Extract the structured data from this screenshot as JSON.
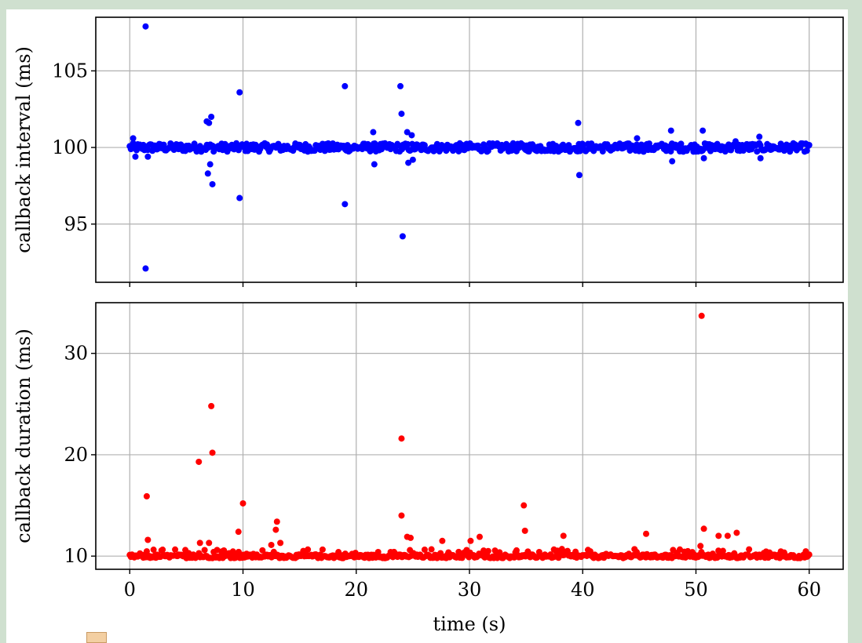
{
  "chart_data": [
    {
      "type": "scatter",
      "ylabel": "callback interval (ms)",
      "xlim": [
        -3,
        63
      ],
      "ylim": [
        91.2,
        108.5
      ],
      "yticks": [
        95,
        100,
        105
      ],
      "xticks": [
        0,
        10,
        20,
        30,
        40,
        50,
        60
      ],
      "show_xtick_labels": false,
      "grid": true,
      "color": "#0000ff",
      "series": [
        {
          "baseline": 100.0,
          "n_regular": 600,
          "x_range": [
            0,
            60
          ],
          "outliers": [
            {
              "x": 0.3,
              "y": 100.6
            },
            {
              "x": 0.5,
              "y": 99.4
            },
            {
              "x": 1.4,
              "y": 107.9
            },
            {
              "x": 1.4,
              "y": 92.1
            },
            {
              "x": 1.6,
              "y": 99.4
            },
            {
              "x": 6.8,
              "y": 101.7
            },
            {
              "x": 6.9,
              "y": 98.3
            },
            {
              "x": 7.0,
              "y": 101.6
            },
            {
              "x": 7.1,
              "y": 98.9
            },
            {
              "x": 7.2,
              "y": 102.0
            },
            {
              "x": 7.3,
              "y": 97.6
            },
            {
              "x": 9.7,
              "y": 103.6
            },
            {
              "x": 9.7,
              "y": 96.7
            },
            {
              "x": 19.0,
              "y": 104.0
            },
            {
              "x": 19.0,
              "y": 96.3
            },
            {
              "x": 21.5,
              "y": 101.0
            },
            {
              "x": 21.6,
              "y": 98.9
            },
            {
              "x": 23.9,
              "y": 104.0
            },
            {
              "x": 24.0,
              "y": 102.2
            },
            {
              "x": 24.1,
              "y": 94.2
            },
            {
              "x": 24.5,
              "y": 101.0
            },
            {
              "x": 24.6,
              "y": 99.0
            },
            {
              "x": 24.9,
              "y": 100.8
            },
            {
              "x": 25.0,
              "y": 99.2
            },
            {
              "x": 39.6,
              "y": 101.6
            },
            {
              "x": 39.7,
              "y": 98.2
            },
            {
              "x": 44.8,
              "y": 100.6
            },
            {
              "x": 47.8,
              "y": 101.1
            },
            {
              "x": 47.9,
              "y": 99.1
            },
            {
              "x": 50.6,
              "y": 101.1
            },
            {
              "x": 50.7,
              "y": 99.3
            },
            {
              "x": 53.5,
              "y": 100.4
            },
            {
              "x": 55.6,
              "y": 100.7
            },
            {
              "x": 55.7,
              "y": 99.3
            }
          ]
        }
      ]
    },
    {
      "type": "scatter",
      "xlabel": "time (s)",
      "ylabel": "callback duration (ms)",
      "xlim": [
        -3,
        63
      ],
      "ylim": [
        8.7,
        35.0
      ],
      "yticks": [
        10,
        20,
        30
      ],
      "xticks": [
        0,
        10,
        20,
        30,
        40,
        50,
        60
      ],
      "show_xtick_labels": true,
      "grid": true,
      "color": "#ff0000",
      "series": [
        {
          "baseline": 9.8,
          "n_regular": 600,
          "x_range": [
            0,
            60
          ],
          "outliers": [
            {
              "x": 1.5,
              "y": 15.9
            },
            {
              "x": 1.6,
              "y": 11.6
            },
            {
              "x": 6.1,
              "y": 19.3
            },
            {
              "x": 6.2,
              "y": 11.3
            },
            {
              "x": 7.0,
              "y": 11.3
            },
            {
              "x": 7.2,
              "y": 24.8
            },
            {
              "x": 7.3,
              "y": 20.2
            },
            {
              "x": 9.6,
              "y": 12.4
            },
            {
              "x": 10.0,
              "y": 15.2
            },
            {
              "x": 12.5,
              "y": 11.1
            },
            {
              "x": 12.9,
              "y": 12.6
            },
            {
              "x": 13.0,
              "y": 13.4
            },
            {
              "x": 13.3,
              "y": 11.3
            },
            {
              "x": 24.0,
              "y": 21.6
            },
            {
              "x": 24.0,
              "y": 14.0
            },
            {
              "x": 24.5,
              "y": 11.9
            },
            {
              "x": 24.8,
              "y": 11.8
            },
            {
              "x": 27.6,
              "y": 11.5
            },
            {
              "x": 30.1,
              "y": 11.5
            },
            {
              "x": 30.9,
              "y": 11.9
            },
            {
              "x": 34.8,
              "y": 15.0
            },
            {
              "x": 34.9,
              "y": 12.5
            },
            {
              "x": 38.3,
              "y": 12.0
            },
            {
              "x": 45.6,
              "y": 12.2
            },
            {
              "x": 50.4,
              "y": 11.0
            },
            {
              "x": 50.5,
              "y": 33.7
            },
            {
              "x": 50.7,
              "y": 12.7
            },
            {
              "x": 52.0,
              "y": 12.0
            },
            {
              "x": 52.8,
              "y": 12.0
            },
            {
              "x": 53.6,
              "y": 12.3
            }
          ]
        }
      ]
    }
  ]
}
